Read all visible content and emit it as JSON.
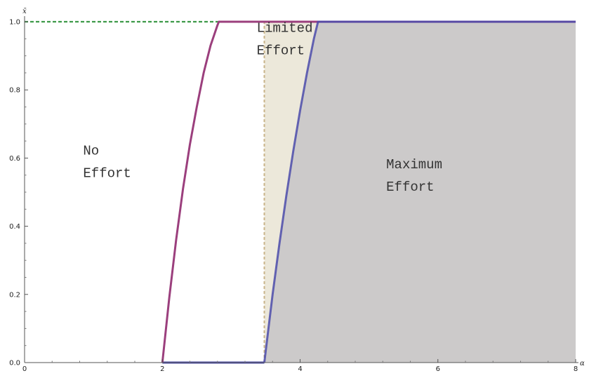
{
  "chart_data": {
    "type": "area",
    "xlabel": "α",
    "ylabel": "x̄",
    "xlim": [
      0,
      8
    ],
    "ylim": [
      0,
      1
    ],
    "x_ticks": [
      0,
      2,
      4,
      6,
      8
    ],
    "x_tick_labels": [
      "0",
      "2",
      "4",
      "6",
      "8"
    ],
    "y_ticks": [
      0,
      0.2,
      0.4,
      0.6,
      0.8,
      1.0
    ],
    "y_tick_labels": [
      "0.0",
      "0.2",
      "0.4",
      "0.6",
      "0.8",
      "1.0"
    ],
    "grid": false,
    "legend": "none",
    "colors": {
      "left_curve": "#9b3f7d",
      "right_curve": "#4b4baa",
      "top_dashed": "#3f9a4a",
      "threshold_dashed": "#c9b48a",
      "limited_fill": "#ece8da",
      "maximum_fill": "#cccaca"
    },
    "series": [
      {
        "x": [
          2.0,
          2.1,
          2.2,
          2.3,
          2.4,
          2.5,
          2.6,
          2.7,
          2.8,
          2.82
        ],
        "y": [
          0.0,
          0.19,
          0.36,
          0.51,
          0.64,
          0.75,
          0.85,
          0.93,
          0.99,
          1.0
        ]
      },
      {
        "x": [
          3.48,
          3.6,
          3.7,
          3.8,
          3.9,
          4.0,
          4.1,
          4.2,
          4.26
        ],
        "y": [
          0.0,
          0.2,
          0.35,
          0.49,
          0.62,
          0.74,
          0.85,
          0.95,
          1.0
        ]
      },
      {
        "x": [
          2.0,
          3.48
        ],
        "y": [
          0.0,
          0.0
        ]
      },
      {
        "x": [
          0,
          8
        ],
        "y": [
          1.0,
          1.0
        ]
      },
      {
        "x": [
          3.48,
          3.48
        ],
        "y": [
          0.0,
          1.0
        ]
      }
    ],
    "regions": [
      {
        "name": "no-effort",
        "lines": [
          "No",
          "Effort"
        ],
        "anchor": [
          0.85,
          0.61
        ]
      },
      {
        "name": "limited-effort",
        "lines": [
          "Limited",
          "Effort"
        ],
        "anchor": [
          3.37,
          0.97
        ]
      },
      {
        "name": "maximum-effort",
        "lines": [
          "Maximum",
          "Effort"
        ],
        "anchor": [
          5.25,
          0.57
        ]
      }
    ]
  }
}
